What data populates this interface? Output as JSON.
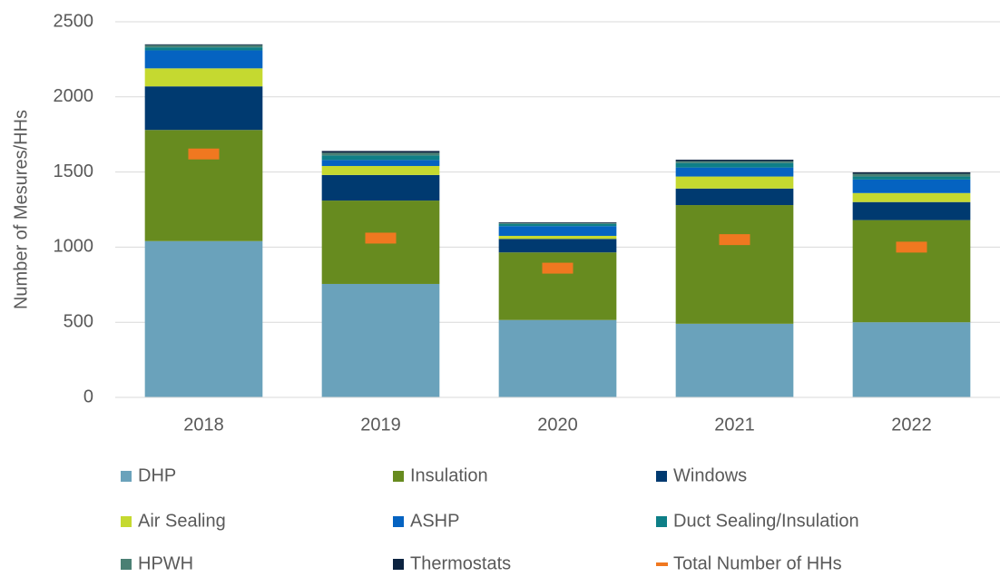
{
  "chart_data": {
    "type": "bar",
    "stacked": true,
    "y_label": "Number of Mesures/HHs",
    "categories": [
      "2018",
      "2019",
      "2020",
      "2021",
      "2022"
    ],
    "ylim": [
      0,
      2500
    ],
    "yticks": [
      0,
      500,
      1000,
      1500,
      2000,
      2500
    ],
    "grid": true,
    "legend": "bottom",
    "series": [
      {
        "name": "DHP",
        "color": "#6aa2bb",
        "values": [
          1040,
          755,
          515,
          490,
          500
        ]
      },
      {
        "name": "Insulation",
        "color": "#678b1f",
        "values": [
          740,
          555,
          450,
          790,
          680
        ]
      },
      {
        "name": "Windows",
        "color": "#003a70",
        "values": [
          290,
          170,
          90,
          110,
          120
        ]
      },
      {
        "name": "Air Sealing",
        "color": "#c5d930",
        "values": [
          120,
          60,
          20,
          80,
          60
        ]
      },
      {
        "name": "ASHP",
        "color": "#0563c1",
        "values": [
          120,
          40,
          65,
          60,
          90
        ]
      },
      {
        "name": "Duct Sealing/Insulation",
        "color": "#0e7f87",
        "values": [
          20,
          30,
          15,
          30,
          20
        ]
      },
      {
        "name": "HPWH",
        "color": "#4b8074",
        "values": [
          15,
          18,
          5,
          12,
          18
        ]
      },
      {
        "name": "Thermostats",
        "color": "#0c2340",
        "values": [
          5,
          12,
          5,
          10,
          10
        ]
      },
      {
        "name": "Total Number of HHs",
        "color": "#f07820",
        "type": "marker",
        "values": [
          1620,
          1060,
          860,
          1050,
          1000
        ]
      }
    ]
  }
}
